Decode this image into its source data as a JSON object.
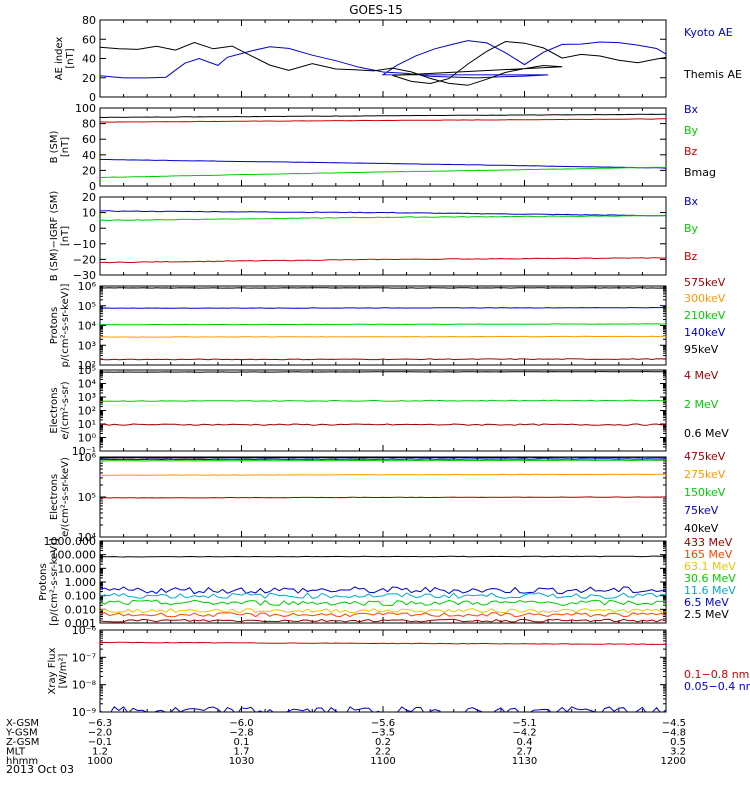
{
  "title": "GOES-15",
  "panels": [
    {
      "id": "ae",
      "ylabel": [
        "AE index",
        "[nT]"
      ],
      "scale": "linear",
      "ylim": [
        0,
        80
      ],
      "ticks": [
        "0",
        "20",
        "40",
        "60",
        "80"
      ],
      "legend": [
        {
          "label": "Kyoto AE",
          "color": "#0000cc"
        },
        {
          "label": "Themis AE",
          "color": "#000000"
        }
      ],
      "series": [
        {
          "name": "Kyoto AE",
          "color": "#0000cc",
          "noise": 1,
          "x": [
            1000,
            1005,
            1010,
            1014,
            1018,
            1021,
            1025,
            1027,
            1032,
            1036,
            1040,
            1045,
            1050,
            1055,
            1060,
            1065,
            1070,
            1075,
            1080,
            1085,
            1090,
            1095,
            1100,
            1103,
            1107,
            1111,
            1115,
            1118,
            1122,
            1126,
            1130,
            1134,
            1138,
            1142,
            1146,
            1150,
            1154,
            1158,
            1162,
            1166,
            1170,
            1175,
            1180,
            1185,
            1190,
            1194,
            1197,
            1200
          ],
          "y": [
            22,
            20,
            19,
            20,
            35,
            40,
            32,
            42,
            48,
            52,
            50,
            44,
            38,
            30,
            26,
            24,
            22,
            20,
            20,
            21,
            21,
            22,
            24,
            34,
            42,
            50,
            56,
            58,
            56,
            46,
            34,
            46,
            54,
            56,
            57,
            56,
            54,
            50,
            38,
            26,
            20,
            19,
            22,
            38,
            50,
            56,
            53,
            60
          ]
        },
        {
          "name": "Themis AE",
          "color": "#000000",
          "noise": 1,
          "x": [
            1000,
            1004,
            1008,
            1012,
            1016,
            1020,
            1024,
            1028,
            1032,
            1036,
            1040,
            1045,
            1050,
            1054,
            1058,
            1062,
            1066,
            1070,
            1074,
            1078,
            1082,
            1086,
            1090,
            1094,
            1098,
            1102,
            1106,
            1110,
            1114,
            1118,
            1122,
            1126,
            1130,
            1134,
            1138,
            1142,
            1146,
            1150,
            1154,
            1158,
            1162,
            1166,
            1170,
            1174,
            1178,
            1182,
            1186,
            1190,
            1194,
            1198,
            1200
          ],
          "y": [
            52,
            50,
            50,
            53,
            48,
            56,
            50,
            52,
            42,
            33,
            28,
            35,
            30,
            28,
            27,
            30,
            26,
            20,
            14,
            12,
            18,
            25,
            30,
            32,
            31,
            23,
            17,
            15,
            20,
            35,
            48,
            58,
            56,
            50,
            40,
            44,
            42,
            38,
            36,
            40,
            42,
            38,
            32,
            36,
            40,
            38,
            36,
            30,
            34,
            33,
            32
          ]
        }
      ]
    },
    {
      "id": "b_sm",
      "ylabel": [
        "B (SM)",
        "[nT]"
      ],
      "scale": "linear",
      "ylim": [
        0,
        100
      ],
      "ticks": [
        "0",
        "20",
        "40",
        "60",
        "80",
        "100"
      ],
      "legend": [
        {
          "label": "Bx",
          "color": "#0000cc"
        },
        {
          "label": "By",
          "color": "#00cc00"
        },
        {
          "label": "Bz",
          "color": "#cc0000"
        },
        {
          "label": "Bmag",
          "color": "#000000"
        }
      ],
      "series": [
        {
          "name": "Bmag",
          "color": "#000000",
          "noise": 0.2,
          "x": [
            1000,
            1100,
            1200
          ],
          "y": [
            88,
            90,
            92
          ]
        },
        {
          "name": "Bz",
          "color": "#cc0000",
          "noise": 0.2,
          "x": [
            1000,
            1100,
            1200
          ],
          "y": [
            82,
            84,
            86
          ]
        },
        {
          "name": "Bx",
          "color": "#0000cc",
          "noise": 0.2,
          "x": [
            1000,
            1100,
            1200
          ],
          "y": [
            34,
            29,
            23
          ]
        },
        {
          "name": "By",
          "color": "#00cc00",
          "noise": 0.2,
          "x": [
            1000,
            1100,
            1200
          ],
          "y": [
            11,
            18,
            24
          ]
        }
      ]
    },
    {
      "id": "b_igrf",
      "ylabel": [
        "B (SM)−IGRF (SM)",
        "[nT]"
      ],
      "scale": "linear",
      "ylim": [
        -30,
        20
      ],
      "ticks": [
        "−30",
        "−20",
        "−10",
        "0",
        "10",
        "20"
      ],
      "legend": [
        {
          "label": "Bx",
          "color": "#0000cc"
        },
        {
          "label": "By",
          "color": "#00cc00"
        },
        {
          "label": "Bz",
          "color": "#cc0000"
        }
      ],
      "series": [
        {
          "name": "Bx",
          "color": "#0000cc",
          "noise": 0.2,
          "x": [
            1000,
            1100,
            1200
          ],
          "y": [
            11,
            10,
            8
          ]
        },
        {
          "name": "By",
          "color": "#00cc00",
          "noise": 0.2,
          "x": [
            1000,
            1100,
            1200
          ],
          "y": [
            5,
            7,
            8
          ]
        },
        {
          "name": "Bz",
          "color": "#cc0000",
          "noise": 0.2,
          "x": [
            1000,
            1100,
            1200
          ],
          "y": [
            -22,
            -20,
            -19
          ]
        }
      ]
    },
    {
      "id": "protons_low",
      "ylabel": [
        "Protons",
        "p/(cm²-s-sr-keV)]"
      ],
      "scale": "log",
      "ylim": [
        100,
        1000000
      ],
      "ticks": [
        "10²",
        "10³",
        "10⁴",
        "10⁵",
        "10⁶"
      ],
      "legend": [
        {
          "label": "575keV",
          "color": "#990000"
        },
        {
          "label": "300keV",
          "color": "#ff9900"
        },
        {
          "label": "210keV",
          "color": "#00cc00"
        },
        {
          "label": "140keV",
          "color": "#0000cc"
        },
        {
          "label": "95keV",
          "color": "#000000"
        }
      ],
      "series": [
        {
          "name": "95keV",
          "color": "#000000",
          "noise": 0.01,
          "x": [
            1000,
            1200
          ],
          "y": [
            800000,
            800000
          ]
        },
        {
          "name": "140keV",
          "color": "#0000cc",
          "noise": 0.01,
          "x": [
            1000,
            1200
          ],
          "y": [
            75000,
            80000
          ]
        },
        {
          "name": "210keV",
          "color": "#00cc00",
          "noise": 0.01,
          "x": [
            1000,
            1200
          ],
          "y": [
            11000,
            12000
          ]
        },
        {
          "name": "300keV",
          "color": "#ff9900",
          "noise": 0.01,
          "x": [
            1000,
            1200
          ],
          "y": [
            2600,
            2800
          ]
        },
        {
          "name": "575keV",
          "color": "#990000",
          "noise": 0.02,
          "x": [
            1000,
            1200
          ],
          "y": [
            190,
            200
          ]
        }
      ]
    },
    {
      "id": "electrons_high",
      "ylabel": [
        "Electrons",
        "e/(cm²-s-sr)"
      ],
      "scale": "log",
      "ylim": [
        0.1,
        100000
      ],
      "ticks": [
        "10⁻¹",
        "10⁰",
        "10¹",
        "10²",
        "10³",
        "10⁴",
        "10⁵"
      ],
      "legend": [
        {
          "label": "4 MeV",
          "color": "#990000"
        },
        {
          "label": "2 MeV",
          "color": "#00cc00"
        },
        {
          "label": "0.6 MeV",
          "color": "#000000"
        }
      ],
      "series": [
        {
          "name": "0.6 MeV",
          "color": "#000000",
          "noise": 0.01,
          "x": [
            1000,
            1200
          ],
          "y": [
            70000,
            75000
          ]
        },
        {
          "name": "2 MeV",
          "color": "#00cc00",
          "noise": 0.03,
          "x": [
            1000,
            1200
          ],
          "y": [
            500,
            550
          ]
        },
        {
          "name": "4 MeV",
          "color": "#990000",
          "noise": 0.05,
          "x": [
            1000,
            1200
          ],
          "y": [
            9,
            9
          ]
        }
      ]
    },
    {
      "id": "electrons_low",
      "ylabel": [
        "Electrons",
        "e/(cm²-s-sr-keV)"
      ],
      "scale": "log",
      "ylim": [
        10000,
        1000000
      ],
      "ticks": [
        "10⁴",
        "10⁵",
        "10⁶"
      ],
      "legend": [
        {
          "label": "475keV",
          "color": "#990000"
        },
        {
          "label": "275keV",
          "color": "#ff9900"
        },
        {
          "label": "150keV",
          "color": "#00cc00"
        },
        {
          "label": "75keV",
          "color": "#0000cc"
        },
        {
          "label": "40keV",
          "color": "#000000"
        }
      ],
      "series": [
        {
          "name": "40keV",
          "color": "#000000",
          "noise": 0.005,
          "x": [
            1000,
            1200
          ],
          "y": [
            950000,
            980000
          ]
        },
        {
          "name": "75keV",
          "color": "#0000cc",
          "noise": 0.005,
          "x": [
            1000,
            1200
          ],
          "y": [
            870000,
            900000
          ]
        },
        {
          "name": "150keV",
          "color": "#00cc00",
          "noise": 0.005,
          "x": [
            1000,
            1200
          ],
          "y": [
            800000,
            830000
          ]
        },
        {
          "name": "275keV",
          "color": "#ff9900",
          "noise": 0.005,
          "x": [
            1000,
            1200
          ],
          "y": [
            350000,
            370000
          ]
        },
        {
          "name": "475keV",
          "color": "#990000",
          "noise": 0.005,
          "x": [
            1000,
            1200
          ],
          "y": [
            95000,
            100000
          ]
        }
      ]
    },
    {
      "id": "protons_high",
      "ylabel": [
        "Protons",
        "[p/(cm²-s-sr-keV)]"
      ],
      "scale": "log",
      "ylim": [
        0.001,
        1000
      ],
      "ticks": [
        "0.001",
        "0.010",
        "0.100",
        "1.000",
        "10.000",
        "100.000",
        "1000.000"
      ],
      "legend": [
        {
          "label": "433 MeV",
          "color": "#990000"
        },
        {
          "label": "165 MeV",
          "color": "#ff4400"
        },
        {
          "label": "63.1 MeV",
          "color": "#e6c800"
        },
        {
          "label": "30.6 MeV",
          "color": "#00cc00"
        },
        {
          "label": "11.6 MeV",
          "color": "#00aacc"
        },
        {
          "label": "6.5 MeV",
          "color": "#0000cc"
        },
        {
          "label": "2.5 MeV",
          "color": "#000000"
        }
      ],
      "series": [
        {
          "name": "2.5 MeV",
          "color": "#000000",
          "noise": 0.02,
          "x": [
            1000,
            1200
          ],
          "y": [
            70,
            75
          ]
        },
        {
          "name": "6.5 MeV",
          "color": "#0000cc",
          "noise": 0.25,
          "x": [
            1000,
            1200
          ],
          "y": [
            0.25,
            0.25
          ]
        },
        {
          "name": "11.6 MeV",
          "color": "#00aacc",
          "noise": 0.2,
          "x": [
            1000,
            1200
          ],
          "y": [
            0.1,
            0.1
          ]
        },
        {
          "name": "30.6 MeV",
          "color": "#00cc00",
          "noise": 0.2,
          "x": [
            1000,
            1200
          ],
          "y": [
            0.03,
            0.03
          ]
        },
        {
          "name": "63.1 MeV",
          "color": "#e6c800",
          "noise": 0.15,
          "x": [
            1000,
            1200
          ],
          "y": [
            0.008,
            0.008
          ]
        },
        {
          "name": "165 MeV",
          "color": "#ff4400",
          "noise": 0.15,
          "x": [
            1000,
            1200
          ],
          "y": [
            0.004,
            0.004
          ]
        },
        {
          "name": "433 MeV",
          "color": "#990000",
          "noise": 0.1,
          "x": [
            1000,
            1200
          ],
          "y": [
            0.0015,
            0.0015
          ]
        }
      ]
    },
    {
      "id": "xray",
      "ylabel": [
        "Xray Flux",
        "[W/m²]"
      ],
      "scale": "log",
      "ylim": [
        1e-09,
        1e-06
      ],
      "ticks": [
        "10⁻⁹",
        "10⁻⁸",
        "10⁻⁷",
        "10⁻⁶"
      ],
      "legend": [
        {
          "label": "0.1−0.8 nm",
          "color": "#cc0000"
        },
        {
          "label": "0.05−0.4 nm",
          "color": "#0000cc"
        }
      ],
      "series": [
        {
          "name": "0.1−0.8 nm",
          "color": "#cc0000",
          "noise": 0.01,
          "x": [
            1000,
            1200
          ],
          "y": [
            3.5e-07,
            3e-07
          ]
        },
        {
          "name": "0.05−0.4 nm",
          "color": "#0000cc",
          "noise": 0.15,
          "x": [
            1000,
            1200
          ],
          "y": [
            1.1e-09,
            1.1e-09
          ]
        }
      ]
    }
  ],
  "chart_data": {
    "type": "line",
    "title": "GOES-15",
    "x_range": [
      1000,
      1200
    ],
    "x_ticks_hhmm": [
      "1000",
      "1030",
      "1100",
      "1130",
      "1200"
    ],
    "ephemeris": [
      {
        "label": "X-GSM",
        "values": [
          "−6.3",
          "−6.0",
          "−5.6",
          "−5.1",
          "−4.5"
        ]
      },
      {
        "label": "Y-GSM",
        "values": [
          "−2.0",
          "−2.8",
          "−3.5",
          "−4.2",
          "−4.8"
        ]
      },
      {
        "label": "Z-GSM",
        "values": [
          "−0.1",
          "0.1",
          "0.2",
          "0.4",
          "0.5"
        ]
      },
      {
        "label": "MLT",
        "values": [
          "1.2",
          "1.7",
          "2.2",
          "2.7",
          "3.2"
        ]
      },
      {
        "label": "hhmm",
        "values": [
          "1000",
          "1030",
          "1100",
          "1130",
          "1200"
        ]
      }
    ],
    "date": "2013 Oct 03"
  }
}
